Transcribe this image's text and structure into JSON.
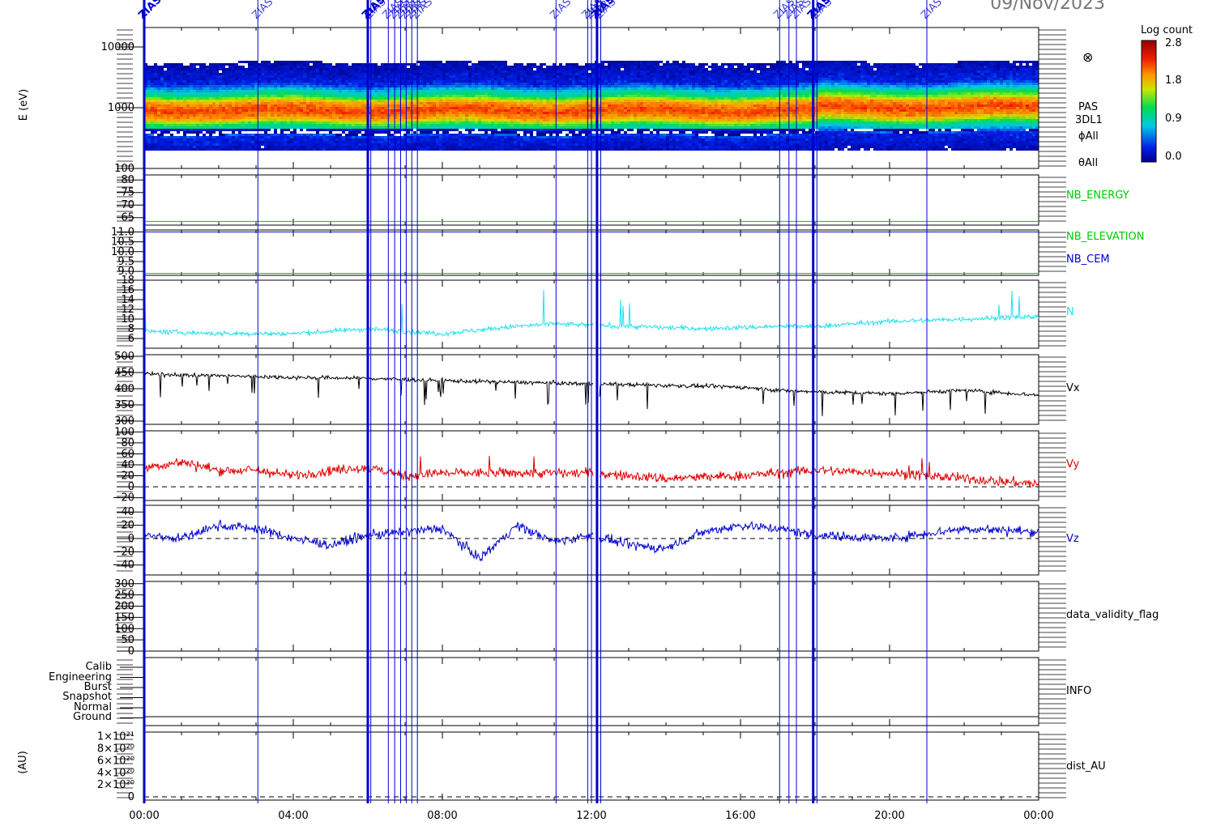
{
  "date": "09/Nov/2023",
  "colorbar": {
    "title": "Log count",
    "ticks": [
      "2.8",
      "1.8",
      "0.9",
      "0.0"
    ]
  },
  "x_ticks": [
    "00:00",
    "04:00",
    "08:00",
    "12:00",
    "16:00",
    "20:00",
    "00:00"
  ],
  "marker_label": "ZIAS",
  "spectrogram": {
    "ylabel": "E (eV)",
    "yticks": [
      "10000",
      "1000",
      "100"
    ],
    "labels": [
      "PAS",
      "3DL1",
      "ϕAll",
      "θAll"
    ],
    "symbol": "⊗"
  },
  "panel_labels": {
    "nb_energy": "NB_ENERGY",
    "nb_elevation": "NB_ELEVATION",
    "nb_cem": "NB_CEM",
    "n": "N",
    "vx": "Vx",
    "vy": "Vy",
    "vz": "Vz",
    "data_validity": "data_validity_flag",
    "info": "INFO",
    "dist": "dist_AU",
    "dist_ylabel": "(AU)"
  },
  "info_levels": [
    "Calib",
    "Engineering",
    "Burst",
    "Snapshot",
    "Normal",
    "Ground"
  ],
  "colors": {
    "green": "#00cc00",
    "blue": "#0000cc",
    "cyan": "#22e0ee",
    "red": "#dd0000",
    "black": "#000000"
  },
  "chart_data": [
    {
      "type": "heatmap",
      "name": "PAS 3DL1 energy spectrogram",
      "ylabel": "E (eV)",
      "ylim": [
        100,
        10000
      ],
      "yscale": "log",
      "colorbar_range": [
        0.0,
        2.8
      ],
      "peak_energy_ev": [
        900,
        1100
      ]
    },
    {
      "type": "line",
      "name": "NB_ENERGY",
      "yticks": [
        "80",
        "75",
        "70",
        "65"
      ],
      "ylim": [
        62,
        82
      ],
      "series": [
        {
          "name": "NB_ENERGY",
          "constant": 63.5
        }
      ]
    },
    {
      "type": "line",
      "name": "NB_ELEVATION / NB_CEM",
      "yticks": [
        "11.0",
        "10.5",
        "10.0",
        "9.5",
        "9.0"
      ],
      "ylim": [
        8.8,
        11.1
      ],
      "series": [
        {
          "name": "NB_ELEVATION",
          "constant": 8.9
        },
        {
          "name": "NB_CEM",
          "constant": 11.0
        }
      ]
    },
    {
      "type": "line",
      "name": "N",
      "yticks": [
        "18",
        "16",
        "14",
        "12",
        "10",
        "8",
        "6"
      ],
      "ylim": [
        4,
        18
      ],
      "series": [
        {
          "name": "N",
          "approx_x_hours": [
            0,
            2,
            4,
            6,
            7,
            8,
            10,
            11,
            13,
            15,
            17,
            18,
            20,
            22,
            24
          ],
          "approx_values": [
            7.5,
            7,
            7,
            8,
            7.5,
            7,
            8.5,
            9,
            8.5,
            8,
            8.5,
            8.5,
            9.5,
            10,
            10.5
          ]
        }
      ]
    },
    {
      "type": "line",
      "name": "Vx",
      "yticks": [
        "500",
        "450",
        "400",
        "350",
        "300"
      ],
      "ylim": [
        290,
        505
      ],
      "series": [
        {
          "name": "Vx",
          "approx_x_hours": [
            0,
            2,
            4,
            6,
            8,
            10,
            12,
            14,
            16,
            17,
            18,
            20,
            22,
            24
          ],
          "approx_values": [
            445,
            440,
            435,
            432,
            425,
            420,
            415,
            410,
            405,
            395,
            390,
            385,
            395,
            380
          ]
        }
      ]
    },
    {
      "type": "line",
      "name": "Vy",
      "yticks": [
        "100",
        "80",
        "60",
        "40",
        "20",
        "0",
        "−20"
      ],
      "ylim": [
        -25,
        102
      ],
      "series": [
        {
          "name": "Vy",
          "approx_x_hours": [
            0,
            1,
            2,
            3,
            4,
            5,
            6,
            7,
            8,
            10,
            12,
            14,
            16,
            18,
            20,
            22,
            24
          ],
          "approx_values": [
            35,
            45,
            30,
            30,
            20,
            30,
            35,
            20,
            25,
            25,
            25,
            15,
            20,
            30,
            25,
            15,
            5
          ]
        }
      ]
    },
    {
      "type": "line",
      "name": "Vz",
      "yticks": [
        "40",
        "20",
        "0",
        "−20",
        "−40"
      ],
      "ylim": [
        -55,
        50
      ],
      "series": [
        {
          "name": "Vz",
          "approx_x_hours": [
            0,
            1,
            2,
            3,
            4,
            5,
            6,
            7,
            8,
            9,
            10,
            11,
            12,
            13,
            14,
            15,
            16,
            17,
            18,
            20,
            22,
            24
          ],
          "approx_values": [
            5,
            0,
            20,
            15,
            0,
            -10,
            5,
            10,
            15,
            -30,
            20,
            -5,
            5,
            -10,
            -15,
            10,
            20,
            15,
            5,
            0,
            15,
            10
          ]
        }
      ]
    },
    {
      "type": "line",
      "name": "data_validity_flag",
      "yticks": [
        "300",
        "250",
        "200",
        "150",
        "100",
        "50",
        "0"
      ],
      "ylim": [
        0,
        310
      ],
      "series": []
    },
    {
      "type": "line",
      "name": "INFO",
      "ytick_labels": [
        "Calib",
        "Engineering",
        "Burst",
        "Snapshot",
        "Normal",
        "Ground"
      ],
      "series": []
    },
    {
      "type": "line",
      "name": "dist_AU",
      "yticks": [
        "1×10²¹",
        "8×10²⁰",
        "6×10²⁰",
        "4×10²⁰",
        "2×10²⁰",
        "0"
      ],
      "ylim": [
        0,
        1.05e+21
      ],
      "series": []
    }
  ],
  "event_hours": [
    0.0,
    3.05,
    6.0,
    6.08,
    6.55,
    6.72,
    6.88,
    7.03,
    7.18,
    7.33,
    11.05,
    11.9,
    12.0,
    12.15,
    12.25,
    17.05,
    17.3,
    17.5,
    17.95,
    18.05,
    21.0
  ]
}
